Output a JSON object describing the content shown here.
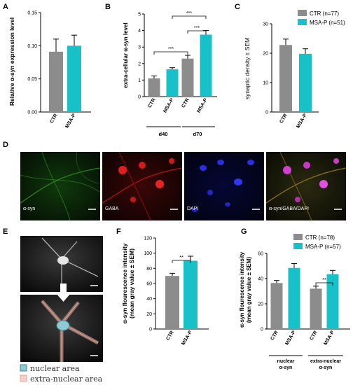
{
  "colors": {
    "ctr": "#8c8c8c",
    "msap": "#17c1c7",
    "axis": "#000000"
  },
  "panel_letters": [
    "A",
    "B",
    "C",
    "D",
    "E",
    "F",
    "G"
  ],
  "chart_data": [
    {
      "id": "A",
      "type": "bar",
      "ylabel": "Relative α-syn expression level",
      "categories": [
        "CTR",
        "MSA-P"
      ],
      "values": [
        0.091,
        0.1
      ],
      "errors": [
        0.019,
        0.016
      ],
      "ylim": [
        0,
        0.15
      ],
      "yticks": [
        0.0,
        0.05,
        0.1,
        0.15
      ],
      "ytick_labels": [
        "0.00",
        "0.05",
        "0.10",
        "0.15"
      ]
    },
    {
      "id": "B",
      "type": "bar",
      "ylabel": "extra-cellular α-syn level",
      "categories": [
        "CTR",
        "MSA-P",
        "CTR",
        "MSA-P"
      ],
      "groups": [
        "d40",
        "d70"
      ],
      "values": [
        1.1,
        1.65,
        2.3,
        3.75
      ],
      "errors": [
        0.15,
        0.1,
        0.2,
        0.25
      ],
      "ylim": [
        0,
        5
      ],
      "yticks": [
        0,
        1,
        2,
        3,
        4,
        5
      ],
      "ytick_labels": [
        "0",
        "1",
        "2",
        "3",
        "4",
        "5"
      ],
      "significance": [
        "***",
        "***",
        "***"
      ]
    },
    {
      "id": "C",
      "type": "bar",
      "ylabel": "synaptic density ± SEM",
      "categories": [
        "CTR",
        "MSA-P"
      ],
      "values": [
        22.8,
        19.8
      ],
      "errors": [
        2.0,
        1.7
      ],
      "ylim": [
        0,
        30
      ],
      "yticks": [
        0,
        10,
        20,
        30
      ],
      "ytick_labels": [
        "0",
        "10",
        "20",
        "30"
      ],
      "legend": [
        "CTR (n=77)",
        "MSA-P (n=51)"
      ],
      "legend_position": "top-right"
    },
    {
      "id": "F",
      "type": "bar",
      "ylabel": "α-syn flourescence intensity (mean gray value ± SEM)",
      "categories": [
        "CTR",
        "MSA-P"
      ],
      "values": [
        70,
        90
      ],
      "errors": [
        3.5,
        6
      ],
      "ylim": [
        0,
        120
      ],
      "yticks": [
        0,
        20,
        40,
        60,
        80,
        100,
        120
      ],
      "ytick_labels": [
        "0",
        "20",
        "40",
        "60",
        "80",
        "100",
        "120"
      ],
      "significance": [
        "**"
      ]
    },
    {
      "id": "G",
      "type": "bar",
      "ylabel": "α-syn flourescence intensity (mean gray value ± SEM)",
      "categories": [
        "CTR",
        "MSA-P",
        "CTR",
        "MSA-P"
      ],
      "groups": [
        "nuclear α-syn",
        "extra-nuclear α-syn"
      ],
      "values": [
        36.5,
        48.5,
        32,
        43.5
      ],
      "errors": [
        2,
        3.5,
        2,
        3
      ],
      "ylim": [
        0,
        60
      ],
      "yticks": [
        0,
        20,
        40,
        60
      ],
      "ytick_labels": [
        "0",
        "20",
        "40",
        "60"
      ],
      "legend": [
        "CTR (n=78)",
        "MSA-P (n=57)"
      ],
      "legend_position": "top",
      "significance": [
        "**"
      ]
    }
  ],
  "micrographs": [
    "α-syn",
    "GABA",
    "DAPI",
    "α-syn/GABA/DAPI"
  ],
  "panel_e": {
    "legend": [
      "nuclear area",
      "extra-nuclear area"
    ]
  }
}
